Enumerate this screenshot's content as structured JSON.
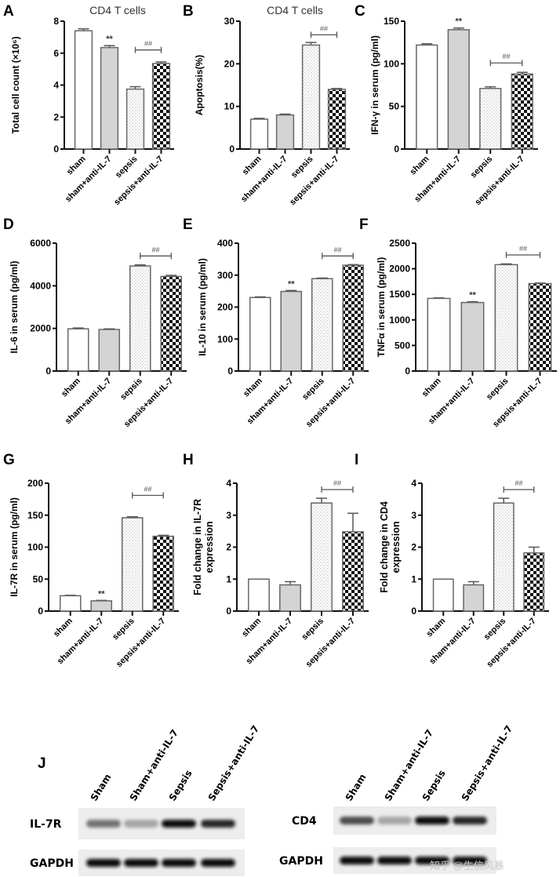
{
  "figure": {
    "panel_j": {
      "letter": "J",
      "blots": [
        {
          "lanes": [
            "Sham",
            "Sham+anti-IL-7",
            "Sepsis",
            "Sepsis+anti-IL-7"
          ],
          "rows": [
            {
              "label": "IL-7R",
              "intensity": [
                0.55,
                0.35,
                0.95,
                0.85
              ]
            },
            {
              "label": "GAPDH",
              "intensity": [
                0.95,
                0.95,
                0.95,
                0.95
              ]
            }
          ]
        },
        {
          "lanes": [
            "Sham",
            "Sham+anti-IL-7",
            "Sepsis",
            "Sepsis+anti-IL-7"
          ],
          "rows": [
            {
              "label": "CD4",
              "intensity": [
                0.7,
                0.35,
                0.97,
                0.85
              ]
            },
            {
              "label": "GAPDH",
              "intensity": [
                0.95,
                0.95,
                0.95,
                0.95
              ]
            }
          ]
        }
      ]
    },
    "watermark": "知乎 @生信风暴"
  },
  "chart_data": [
    {
      "panel": "A",
      "type": "bar",
      "title": "CD4 T cells",
      "ylabel": "Total cell count (×10⁶)",
      "xlabel": "",
      "categories": [
        "sham",
        "sham+anti-IL-7",
        "sepsis",
        "sepsis+anti-IL-7"
      ],
      "values": [
        7.4,
        6.35,
        3.75,
        5.35
      ],
      "errors": [
        0.12,
        0.12,
        0.15,
        0.1
      ],
      "ylim": [
        0,
        8
      ],
      "yticks": [
        "0",
        "2",
        "4",
        "6",
        "8"
      ],
      "ytick_values": [
        0,
        2,
        4,
        6,
        8
      ],
      "annotations": [
        {
          "text": "**",
          "bar": 1
        }
      ],
      "bracket": {
        "text": "##",
        "from": 2,
        "to": 3,
        "y": 6.2
      },
      "grid": false
    },
    {
      "panel": "B",
      "type": "bar",
      "title": "CD4 T cells",
      "ylabel": "Apoptosis(%)",
      "xlabel": "",
      "categories": [
        "sham",
        "sham+anti-IL-7",
        "sepsis",
        "sepsis+anti-IL-7"
      ],
      "values": [
        7.0,
        8.0,
        24.4,
        14.0
      ],
      "errors": [
        0.2,
        0.2,
        0.6,
        0.2
      ],
      "ylim": [
        0,
        30
      ],
      "yticks": [
        "0",
        "10",
        "20",
        "30"
      ],
      "ytick_values": [
        0,
        10,
        20,
        30
      ],
      "annotations": [],
      "bracket": {
        "text": "##",
        "from": 2,
        "to": 3,
        "y": 26.8
      },
      "grid": false
    },
    {
      "panel": "C",
      "type": "bar",
      "title": "",
      "ylabel": "IFN-γ in serum (pg/ml)",
      "xlabel": "",
      "categories": [
        "sham",
        "sham+anti-IL-7",
        "sepsis",
        "sepsis+anti-IL-7"
      ],
      "values": [
        122,
        140,
        71,
        88
      ],
      "errors": [
        1.5,
        2,
        2,
        2
      ],
      "ylim": [
        0,
        150
      ],
      "yticks": [
        "0",
        "50",
        "100",
        "150"
      ],
      "ytick_values": [
        0,
        50,
        100,
        150
      ],
      "annotations": [
        {
          "text": "**",
          "bar": 1
        }
      ],
      "bracket": {
        "text": "##",
        "from": 2,
        "to": 3,
        "y": 101
      },
      "grid": false
    },
    {
      "panel": "D",
      "type": "bar",
      "title": "",
      "ylabel": "IL-6 in serum (pg/ml)",
      "xlabel": "",
      "categories": [
        "sham",
        "sham+anti-IL-7",
        "sepsis",
        "sepsis+anti-IL-7"
      ],
      "values": [
        1980,
        1950,
        4930,
        4440
      ],
      "errors": [
        40,
        30,
        50,
        50
      ],
      "ylim": [
        0,
        6000
      ],
      "yticks": [
        "0",
        "2000",
        "4000",
        "6000"
      ],
      "ytick_values": [
        0,
        2000,
        4000,
        6000
      ],
      "annotations": [],
      "bracket": {
        "text": "##",
        "from": 2,
        "to": 3,
        "y": 5400
      },
      "grid": false
    },
    {
      "panel": "E",
      "type": "bar",
      "title": "",
      "ylabel": "IL-10 in serum (pg/ml)",
      "xlabel": "",
      "categories": [
        "sham",
        "sham+anti-IL-7",
        "sepsis",
        "sepsis+anti-IL-7"
      ],
      "values": [
        230,
        249,
        289,
        331
      ],
      "errors": [
        2,
        3,
        2,
        2
      ],
      "ylim": [
        0,
        400
      ],
      "yticks": [
        "0",
        "100",
        "200",
        "300",
        "400"
      ],
      "ytick_values": [
        0,
        100,
        200,
        300,
        400
      ],
      "annotations": [
        {
          "text": "**",
          "bar": 1
        }
      ],
      "bracket": {
        "text": "##",
        "from": 2,
        "to": 3,
        "y": 360
      },
      "grid": false
    },
    {
      "panel": "F",
      "type": "bar",
      "title": "",
      "ylabel": "TNFα in serum (pg/ml)",
      "xlabel": "",
      "categories": [
        "sham",
        "sham+anti-IL-7",
        "sepsis",
        "sepsis+anti-IL-7"
      ],
      "values": [
        1420,
        1340,
        2080,
        1710
      ],
      "errors": [
        10,
        15,
        15,
        10
      ],
      "ylim": [
        0,
        2500
      ],
      "yticks": [
        "0",
        "500",
        "1000",
        "1500",
        "2000",
        "2500"
      ],
      "ytick_values": [
        0,
        500,
        1000,
        1500,
        2000,
        2500
      ],
      "annotations": [
        {
          "text": "**",
          "bar": 1
        }
      ],
      "bracket": {
        "text": "##",
        "from": 2,
        "to": 3,
        "y": 2270
      },
      "grid": false
    },
    {
      "panel": "G",
      "type": "bar",
      "title": "",
      "ylabel": "IL-7R in serum (pg/ml)",
      "xlabel": "",
      "categories": [
        "sham",
        "sham+anti-IL-7",
        "sepsis",
        "sepsis+anti-IL-7"
      ],
      "values": [
        24,
        16,
        146,
        117
      ],
      "errors": [
        0.7,
        0.7,
        1.5,
        1.5
      ],
      "ylim": [
        0,
        200
      ],
      "yticks": [
        "0",
        "50",
        "100",
        "150",
        "200"
      ],
      "ytick_values": [
        0,
        50,
        100,
        150,
        200
      ],
      "annotations": [
        {
          "text": "**",
          "bar": 1
        }
      ],
      "bracket": {
        "text": "##",
        "from": 2,
        "to": 3,
        "y": 181
      },
      "grid": false
    },
    {
      "panel": "H",
      "type": "bar",
      "title": "",
      "ylabel": "Fold change in IL-7R expression",
      "xlabel": "",
      "categories": [
        "sham",
        "sham+anti-IL-7",
        "sepsis",
        "sepsis+anti-IL-7"
      ],
      "values": [
        1.0,
        0.82,
        3.38,
        2.48
      ],
      "errors": [
        0,
        0.1,
        0.15,
        0.58
      ],
      "ylim": [
        0,
        4
      ],
      "yticks": [
        "0",
        "1",
        "2",
        "3",
        "4"
      ],
      "ytick_values": [
        0,
        1,
        2,
        3,
        4
      ],
      "annotations": [],
      "bracket": {
        "text": "##",
        "from": 2,
        "to": 3,
        "y": 3.8
      },
      "grid": false
    },
    {
      "panel": "I",
      "type": "bar",
      "title": "",
      "ylabel": "Fold change in CD4 expression",
      "xlabel": "",
      "categories": [
        "sham",
        "sham+anti-IL-7",
        "sepsis",
        "sepsis+anti-IL-7"
      ],
      "values": [
        1.0,
        0.82,
        3.38,
        1.82
      ],
      "errors": [
        0,
        0.1,
        0.15,
        0.18
      ],
      "ylim": [
        0,
        4
      ],
      "yticks": [
        "0",
        "1",
        "2",
        "3",
        "4"
      ],
      "ytick_values": [
        0,
        1,
        2,
        3,
        4
      ],
      "annotations": [],
      "bracket": {
        "text": "##",
        "from": 2,
        "to": 3,
        "y": 3.8
      },
      "grid": false
    }
  ]
}
